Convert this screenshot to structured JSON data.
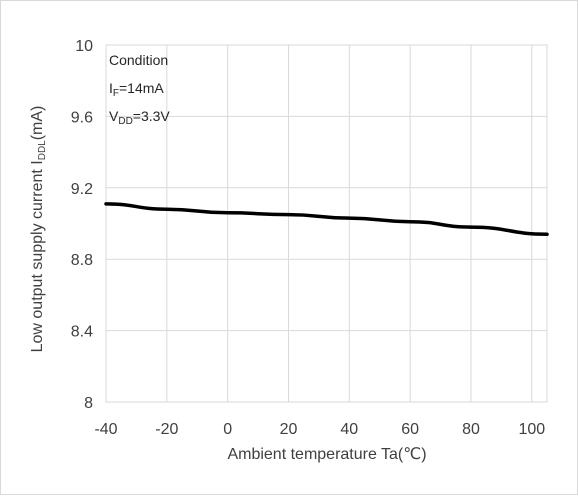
{
  "chart_data": {
    "type": "line",
    "xlabel": "Ambient temperature Ta(℃)",
    "ylabel_main": "Low output supply current I",
    "ylabel_sub": "DDL",
    "ylabel_unit": "(mA)",
    "xlim": [
      -40,
      105
    ],
    "ylim": [
      8,
      10
    ],
    "x_ticks": [
      -40,
      -20,
      0,
      20,
      40,
      60,
      80,
      100
    ],
    "y_ticks": [
      8,
      8.4,
      8.8,
      9.2,
      9.6,
      10
    ],
    "y_tick_labels": [
      "8",
      "8.4",
      "8.8",
      "9.2",
      "9.6",
      "10"
    ],
    "grid": true,
    "series": [
      {
        "x": [
          -40,
          -20,
          0,
          20,
          40,
          60,
          80,
          105
        ],
        "y": [
          9.11,
          9.08,
          9.06,
          9.05,
          9.03,
          9.01,
          8.98,
          8.94
        ],
        "color": "#000000"
      }
    ],
    "annotation": {
      "title": "Condition",
      "line1_main": "I",
      "line1_sub": "F",
      "line1_rest": "=14mA",
      "line2_main": "V",
      "line2_sub": "DD",
      "line2_rest": "=3.3V"
    }
  }
}
